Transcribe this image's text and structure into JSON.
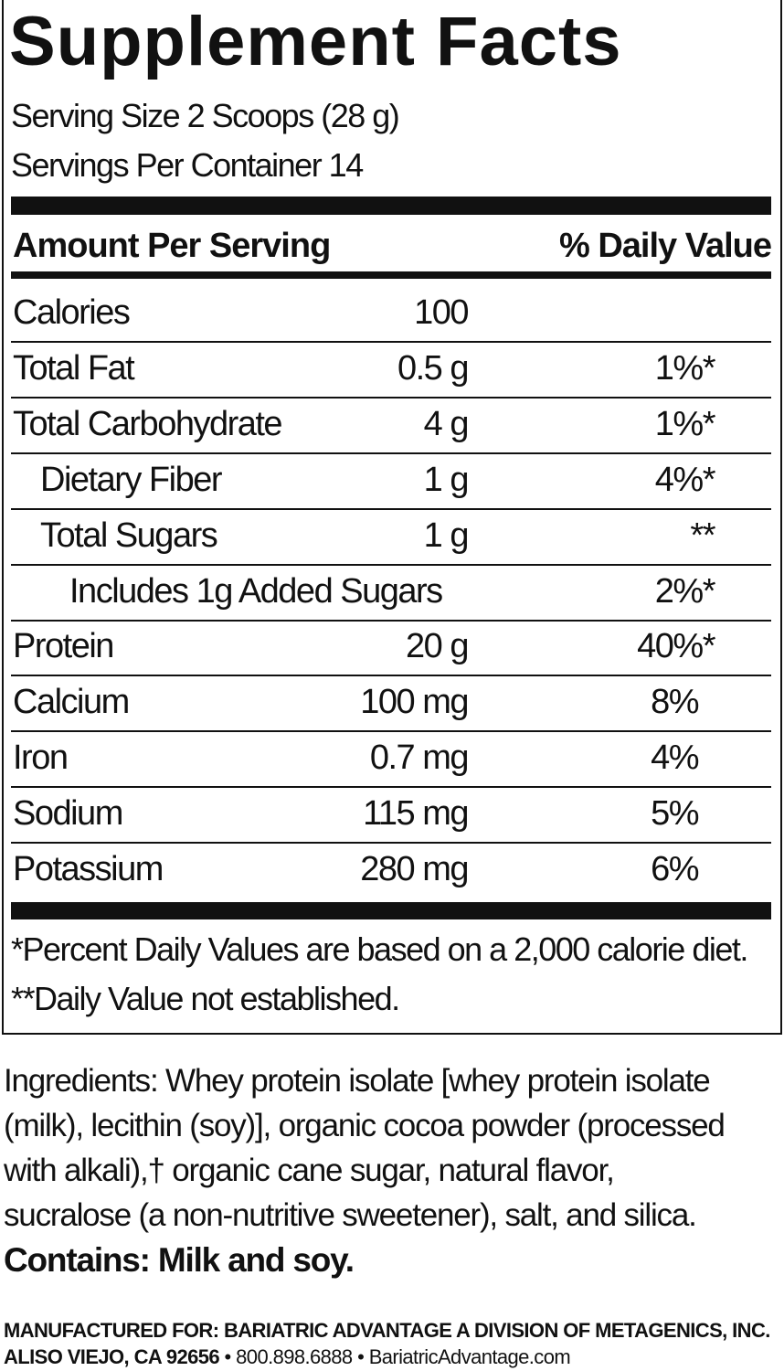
{
  "title": "Supplement Facts",
  "serving_size": "Serving Size 2 Scoops (28 g)",
  "servings_per_container": "Servings Per Container 14",
  "header": {
    "amount": "Amount Per Serving",
    "dv": "% Daily Value"
  },
  "rows": [
    {
      "name": "Calories",
      "amount": "100",
      "dv": ""
    },
    {
      "name": "Total Fat",
      "amount": "0.5 g",
      "dv": "1%*"
    },
    {
      "name": "Total Carbohydrate",
      "amount": "4 g",
      "dv": "1%*"
    },
    {
      "name": "Dietary Fiber",
      "amount": "1 g",
      "dv": "4%*"
    },
    {
      "name": "Total Sugars",
      "amount": "1 g",
      "dv": "**"
    },
    {
      "name": "Includes 1g Added Sugars",
      "amount": "",
      "dv": "2%*"
    },
    {
      "name": "Protein",
      "amount": "20 g",
      "dv": "40%*"
    },
    {
      "name": "Calcium",
      "amount": "100 mg",
      "dv": "8%"
    },
    {
      "name": "Iron",
      "amount": "0.7 mg",
      "dv": "4%"
    },
    {
      "name": "Sodium",
      "amount": "115 mg",
      "dv": "5%"
    },
    {
      "name": "Potassium",
      "amount": "280 mg",
      "dv": "6%"
    }
  ],
  "footnotes": [
    "*Percent Daily Values are based on a 2,000 calorie diet.",
    "**Daily Value not established."
  ],
  "ingredients": [
    "Ingredients: Whey protein isolate [whey protein isolate",
    "(milk), lecithin (soy)], organic cocoa powder (processed",
    "with alkali),† organic cane sugar, natural flavor,",
    "sucralose (a non-nutritive sweetener), salt, and silica."
  ],
  "contains": "Contains: Milk and soy.",
  "manufacturer": {
    "line1": "MANUFACTURED FOR: BARIATRIC ADVANTAGE A DIVISION OF METAGENICS, INC.",
    "location": "ALISO VIEJO, CA 92656",
    "phone": "800.898.6888",
    "website": "BariatricAdvantage.com",
    "separator": "•"
  }
}
